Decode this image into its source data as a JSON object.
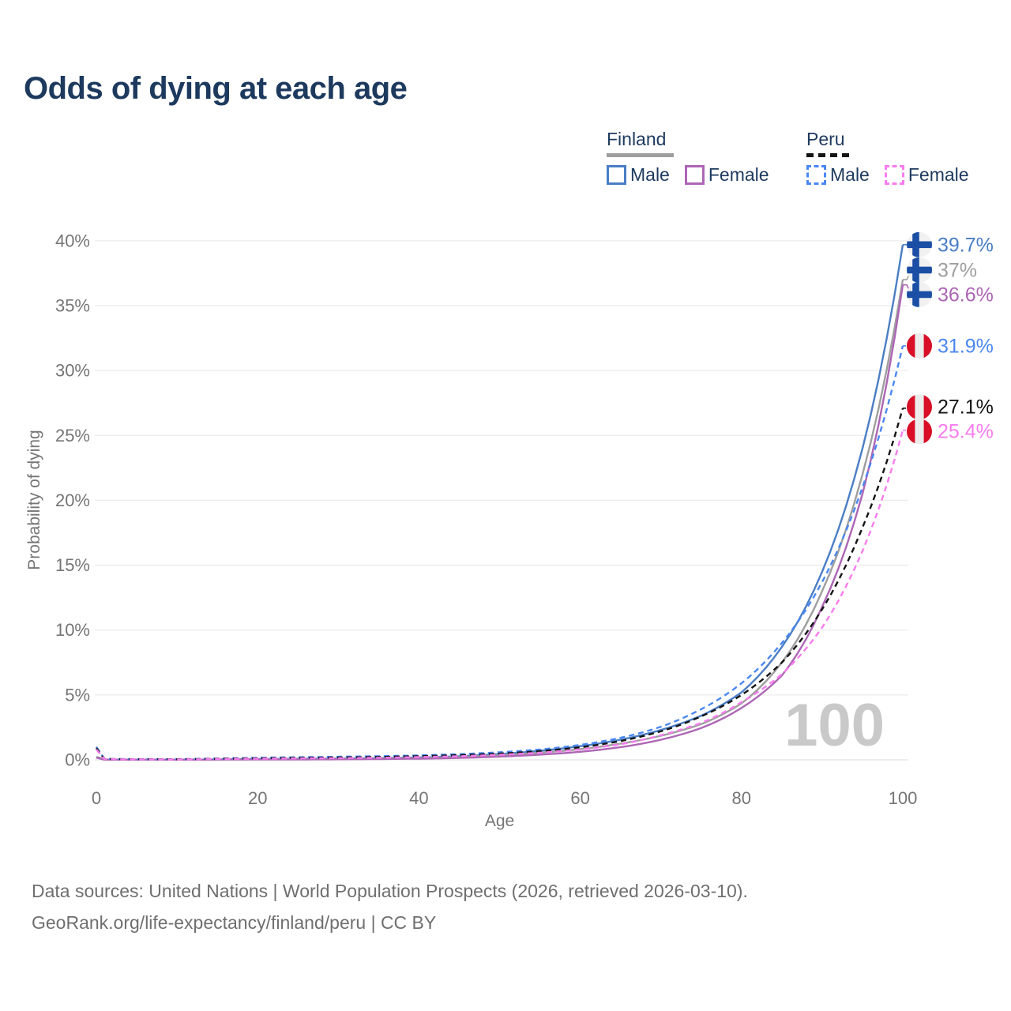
{
  "title": "Odds of dying at each age",
  "legend": {
    "finland": {
      "label": "Finland",
      "male_label": "Male",
      "female_label": "Female"
    },
    "peru": {
      "label": "Peru",
      "male_label": "Male",
      "female_label": "Female"
    }
  },
  "colors": {
    "title_text": "#1d3a5e",
    "axis_text": "#757575",
    "grid": "#ececec",
    "watermark": "#c9c9c9",
    "finland_male": "#4a7ec5",
    "finland_both": "#9e9e9e",
    "finland_female": "#ad66b5",
    "peru_male": "#4b87f2",
    "peru_both": "#141414",
    "peru_female": "#f87cee",
    "finland_flag_blue": "#1b4fa5",
    "finland_flag_bg": "#f1f1f1",
    "peru_flag_red": "#d80f26",
    "peru_flag_bg": "#ececec"
  },
  "chart_data": {
    "type": "line",
    "title": "Odds of dying at each age",
    "xlabel": "Age",
    "ylabel": "Probability of dying",
    "xlim": [
      0,
      100
    ],
    "ylim": [
      0,
      40
    ],
    "grid": "horizontal",
    "legend_position": "top-right",
    "watermark": "100",
    "xticks": [
      0,
      20,
      40,
      60,
      80,
      100
    ],
    "ytick_values": [
      0,
      5,
      10,
      15,
      20,
      25,
      30,
      35,
      40
    ],
    "ytick_labels": [
      "0%",
      "5%",
      "10%",
      "15%",
      "20%",
      "25%",
      "30%",
      "35%",
      "40%"
    ],
    "x": [
      0,
      1,
      5,
      10,
      15,
      20,
      25,
      30,
      35,
      40,
      45,
      50,
      55,
      60,
      65,
      70,
      75,
      80,
      85,
      90,
      95,
      100
    ],
    "series": [
      {
        "id": "finland-male",
        "name": "Finland Male",
        "country": "Finland",
        "sex": "Male",
        "color": "#4a7ec5",
        "dash": null,
        "flag": "finland",
        "end_label": "39.7%",
        "values": [
          0.23,
          0.02,
          0.01,
          0.01,
          0.03,
          0.06,
          0.08,
          0.1,
          0.13,
          0.18,
          0.28,
          0.45,
          0.7,
          1.05,
          1.55,
          2.3,
          3.4,
          5.2,
          8.7,
          14.5,
          24.0,
          39.7
        ]
      },
      {
        "id": "finland-both",
        "name": "Finland (both sexes)",
        "country": "Finland",
        "sex": "Both",
        "color": "#9e9e9e",
        "dash": null,
        "flag": "finland",
        "end_label": "37%",
        "values": [
          0.2,
          0.02,
          0.01,
          0.01,
          0.02,
          0.04,
          0.06,
          0.07,
          0.1,
          0.14,
          0.22,
          0.35,
          0.55,
          0.82,
          1.25,
          1.85,
          2.75,
          4.35,
          7.5,
          13.0,
          22.0,
          37.0
        ]
      },
      {
        "id": "finland-female",
        "name": "Finland Female",
        "country": "Finland",
        "sex": "Female",
        "color": "#ad66b5",
        "dash": null,
        "flag": "finland",
        "end_label": "36.6%",
        "values": [
          0.17,
          0.01,
          0.01,
          0.01,
          0.02,
          0.03,
          0.03,
          0.04,
          0.06,
          0.09,
          0.15,
          0.25,
          0.4,
          0.62,
          0.98,
          1.55,
          2.45,
          4.0,
          6.5,
          11.8,
          20.5,
          36.6
        ]
      },
      {
        "id": "peru-male",
        "name": "Peru Male",
        "country": "Peru",
        "sex": "Male",
        "color": "#4b87f2",
        "dash": "7 5",
        "flag": "peru",
        "end_label": "31.9%",
        "values": [
          1.0,
          0.07,
          0.05,
          0.05,
          0.1,
          0.16,
          0.2,
          0.24,
          0.28,
          0.34,
          0.44,
          0.58,
          0.8,
          1.15,
          1.7,
          2.55,
          3.9,
          5.9,
          9.0,
          13.7,
          21.0,
          31.9
        ]
      },
      {
        "id": "peru-both",
        "name": "Peru (both sexes)",
        "country": "Peru",
        "sex": "Both",
        "color": "#141414",
        "dash": "7 5",
        "flag": "peru",
        "end_label": "27.1%",
        "values": [
          0.9,
          0.06,
          0.04,
          0.04,
          0.08,
          0.12,
          0.15,
          0.18,
          0.22,
          0.28,
          0.36,
          0.48,
          0.67,
          0.97,
          1.45,
          2.2,
          3.35,
          5.0,
          7.5,
          11.6,
          17.9,
          27.1
        ]
      },
      {
        "id": "peru-female",
        "name": "Peru Female",
        "country": "Peru",
        "sex": "Female",
        "color": "#f87cee",
        "dash": "7 5",
        "flag": "peru",
        "end_label": "25.4%",
        "values": [
          0.8,
          0.05,
          0.04,
          0.03,
          0.06,
          0.09,
          0.11,
          0.13,
          0.16,
          0.21,
          0.28,
          0.39,
          0.55,
          0.8,
          1.2,
          1.9,
          2.85,
          4.45,
          6.6,
          10.2,
          16.1,
          25.4
        ]
      }
    ]
  },
  "footer": {
    "line1": "Data sources: United Nations | World Population Prospects (2026, retrieved 2026-03-10).",
    "line2": "GeoRank.org/life-expectancy/finland/peru | CC BY"
  }
}
